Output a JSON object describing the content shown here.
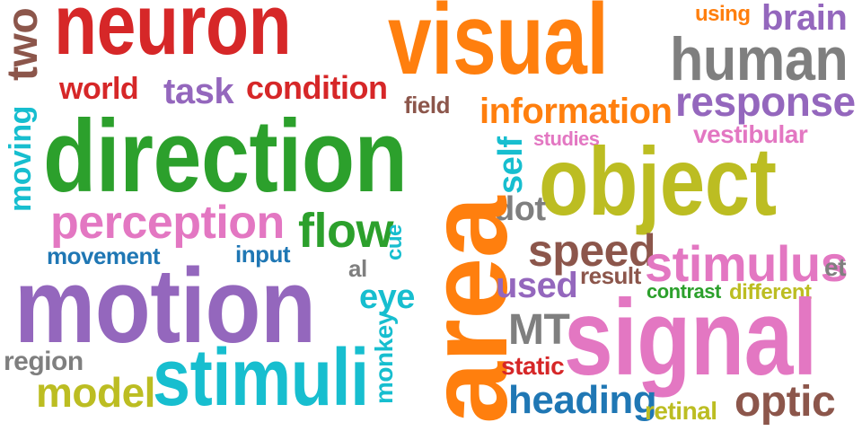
{
  "colors": {
    "red": "#d62728",
    "brown": "#8c564b",
    "purple": "#9467bd",
    "orange": "#ff7f0e",
    "gray": "#7f7f7f",
    "green": "#2ca02c",
    "olive": "#bcbd22",
    "cyan": "#17becf",
    "pink": "#e377c2",
    "blue": "#1f77b4"
  },
  "words": {
    "neuron": "neuron",
    "two": "two",
    "world": "world",
    "task": "task",
    "condition": "condition",
    "visual": "visual",
    "using": "using",
    "brain": "brain",
    "human": "human",
    "field": "field",
    "information": "information",
    "response": "response",
    "moving": "moving",
    "direction": "direction",
    "studies": "studies",
    "vestibular": "vestibular",
    "self": "self",
    "object": "object",
    "dot": "dot",
    "perception": "perception",
    "flow": "flow",
    "cue": "cue",
    "area": "area",
    "speed": "speed",
    "stimulus": "stimulus",
    "et": "et",
    "movement": "movement",
    "input": "input",
    "al": "al",
    "motion": "motion",
    "eye": "eye",
    "used": "used",
    "result": "result",
    "contrast": "contrast",
    "different": "different",
    "monkey": "monkey",
    "mt": "MT",
    "signal": "signal",
    "region": "region",
    "stimuli": "stimuli",
    "static": "static",
    "model": "model",
    "heading": "heading",
    "optic": "optic",
    "retinal": "retinal"
  }
}
